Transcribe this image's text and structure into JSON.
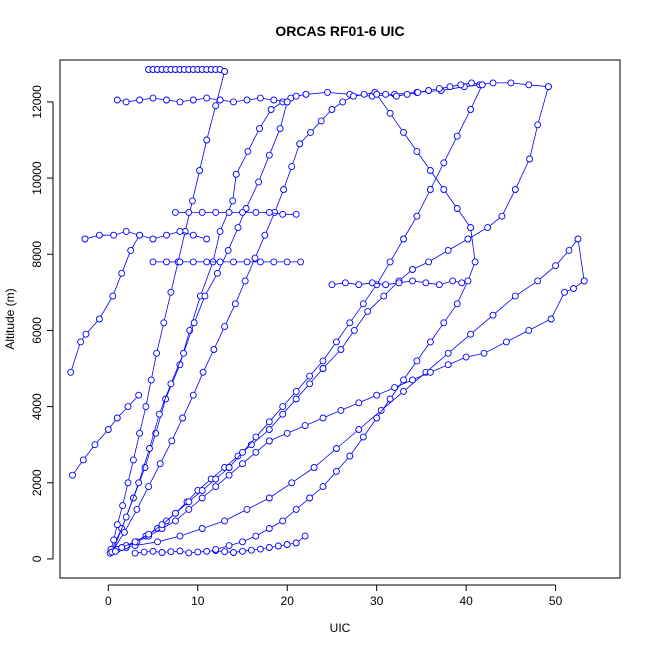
{
  "chart_data": {
    "type": "scatter",
    "title": "ORCAS RF01-6 UIC",
    "xlabel": "UIC",
    "ylabel": "Altitude (m)",
    "xlim": [
      -5.4,
      57.2
    ],
    "ylim": [
      -500,
      13100
    ],
    "xticks": [
      0,
      10,
      20,
      30,
      40,
      50
    ],
    "yticks": [
      0,
      2000,
      4000,
      6000,
      8000,
      10000,
      12000
    ],
    "grid": false,
    "legend": "none",
    "markers": "open-circle",
    "connected": true,
    "color": "#0000ff",
    "series": [
      {
        "x": [
          0.2,
          1.5,
          2.8,
          4.1,
          5.3,
          6.4,
          8.0,
          9.1,
          10.3,
          11.7,
          12.5,
          13.9,
          14.3
        ],
        "y": [
          150,
          800,
          1600,
          2400,
          3300,
          4200,
          5100,
          6000,
          6900,
          7800,
          8600,
          9400,
          10100
        ]
      },
      {
        "x": [
          14.3,
          15.6,
          16.9,
          18.2,
          19.5,
          20.4,
          21.0,
          22.1
        ],
        "y": [
          10100,
          10700,
          11300,
          11800,
          12000,
          12100,
          12150,
          12200
        ]
      },
      {
        "x": [
          22.1,
          24.5,
          27.0,
          29.5,
          32.0,
          34.5,
          37.2,
          39.8,
          41.5,
          43.0,
          45.0,
          47.0,
          49.2
        ],
        "y": [
          12200,
          12250,
          12200,
          12150,
          12200,
          12250,
          12300,
          12400,
          12450,
          12500,
          12500,
          12450,
          12400
        ]
      },
      {
        "x": [
          49.2,
          48.0,
          47.1,
          45.5,
          44.0,
          42.4,
          40.2,
          38.0,
          35.8,
          34.0,
          32.5,
          30.8,
          29.0,
          27.5,
          26.0,
          24.0
        ],
        "y": [
          12400,
          11400,
          10500,
          9700,
          9000,
          8700,
          8400,
          8100,
          7800,
          7600,
          7300,
          6900,
          6500,
          6000,
          5500,
          5000
        ]
      },
      {
        "x": [
          24.0,
          22.5,
          21.0,
          19.5,
          18.0,
          16.0,
          14.5,
          13.0,
          11.5,
          10.0,
          8.8,
          7.5,
          6.5,
          5.5,
          4.2,
          3.0,
          2.0,
          1.0,
          0.5
        ],
        "y": [
          5000,
          4600,
          4200,
          3800,
          3400,
          3000,
          2700,
          2400,
          2100,
          1800,
          1500,
          1200,
          1000,
          800,
          600,
          450,
          300,
          250,
          200
        ]
      },
      {
        "x": [
          0.5,
          2.0,
          3.4,
          4.6,
          5.7,
          7.0,
          8.4,
          9.6,
          10.8,
          12.2,
          13.4,
          14.5,
          15.4,
          16.8,
          18.0,
          19.2,
          20.0
        ],
        "y": [
          200,
          1100,
          2000,
          2900,
          3800,
          4600,
          5400,
          6200,
          6900,
          7500,
          8100,
          8700,
          9200,
          9900,
          10600,
          11300,
          12000
        ]
      },
      {
        "x": [
          20.0,
          18.5,
          17.0,
          15.5,
          14.0,
          12.5,
          11.0,
          9.5,
          8.0,
          6.5,
          5.0,
          3.5,
          2.0,
          1.0
        ],
        "y": [
          12000,
          12050,
          12100,
          12050,
          12000,
          12050,
          12100,
          12050,
          12000,
          12050,
          12100,
          12050,
          12000,
          12050
        ]
      },
      {
        "x": [
          4.5,
          5.0,
          5.5,
          6.0,
          6.5,
          7.0,
          7.5,
          8.0,
          8.5,
          9.0,
          9.5,
          10.0,
          10.5,
          11.0,
          11.5,
          12.0,
          12.5,
          13.0
        ],
        "y": [
          12850,
          12850,
          12850,
          12850,
          12850,
          12850,
          12850,
          12850,
          12850,
          12850,
          12850,
          12850,
          12850,
          12850,
          12850,
          12850,
          12850,
          12800
        ]
      },
      {
        "x": [
          13.0,
          12.0,
          11.0,
          10.2,
          9.4,
          8.6,
          7.8,
          7.0,
          6.2,
          5.4,
          4.8,
          4.2,
          3.5,
          2.8,
          2.2,
          1.6,
          1.0,
          0.6,
          0.3
        ],
        "y": [
          12800,
          11900,
          11000,
          10200,
          9400,
          8600,
          7800,
          7000,
          6200,
          5400,
          4700,
          4000,
          3300,
          2600,
          2000,
          1400,
          900,
          500,
          250
        ]
      },
      {
        "x": [
          0.3,
          3.0,
          5.5,
          8.0,
          10.5,
          13.0,
          15.5,
          18.0,
          20.5,
          23.0,
          25.5,
          28.0,
          30.5,
          33.0,
          35.5,
          38.0,
          40.5,
          43.0,
          45.5,
          48.0,
          50.0,
          51.5,
          52.5,
          53.2
        ],
        "y": [
          250,
          350,
          450,
          600,
          800,
          1000,
          1300,
          1600,
          2000,
          2400,
          2900,
          3400,
          3900,
          4400,
          4900,
          5400,
          5900,
          6400,
          6900,
          7300,
          7700,
          8100,
          8400,
          7300
        ]
      },
      {
        "x": [
          53.2,
          52.0,
          51.0,
          49.5,
          47.0,
          44.5,
          42.0,
          40.0,
          38.0,
          36.0,
          34.0,
          32.0,
          30.0,
          28.0,
          26.0,
          24.0,
          22.0,
          20.0,
          18.0
        ],
        "y": [
          7300,
          7100,
          7000,
          6300,
          6000,
          5700,
          5400,
          5300,
          5100,
          4900,
          4700,
          4500,
          4300,
          4100,
          3900,
          3700,
          3500,
          3300,
          3100
        ]
      },
      {
        "x": [
          18.0,
          16.5,
          15.0,
          13.5,
          12.0,
          10.5,
          9.0,
          7.5,
          6.0,
          4.5,
          3.2,
          2.0,
          1.0,
          0.4
        ],
        "y": [
          3100,
          2800,
          2500,
          2200,
          1900,
          1600,
          1300,
          1000,
          800,
          600,
          450,
          350,
          250,
          180
        ]
      },
      {
        "x": [
          0.4,
          1.8,
          3.2,
          4.5,
          5.8,
          7.1,
          8.3,
          9.5,
          10.6,
          11.8,
          13.0,
          14.2,
          15.3,
          16.4,
          17.5,
          18.6,
          19.6,
          20.5,
          21.4
        ],
        "y": [
          180,
          700,
          1300,
          1900,
          2500,
          3100,
          3700,
          4300,
          4900,
          5500,
          6100,
          6700,
          7300,
          7900,
          8500,
          9100,
          9700,
          10300,
          10900
        ]
      },
      {
        "x": [
          21.4,
          22.6,
          23.8,
          25.0,
          26.2,
          27.4,
          28.6,
          29.8,
          31.0,
          32.2,
          33.4,
          34.6,
          35.8,
          37.0,
          38.2,
          39.4,
          40.6,
          41.8
        ],
        "y": [
          10900,
          11200,
          11500,
          11800,
          12000,
          12150,
          12200,
          12250,
          12200,
          12150,
          12200,
          12250,
          12300,
          12350,
          12400,
          12450,
          12500,
          12450
        ]
      },
      {
        "x": [
          41.8,
          40.5,
          39.0,
          37.5,
          36.0,
          34.5,
          33.0,
          31.5,
          30.0,
          28.5,
          27.0,
          25.5,
          24.0,
          22.5,
          21.0,
          19.5,
          18.0,
          16.5,
          15.0,
          13.5
        ],
        "y": [
          12450,
          11800,
          11100,
          10400,
          9700,
          9000,
          8400,
          7800,
          7200,
          6700,
          6200,
          5700,
          5200,
          4800,
          4400,
          4000,
          3600,
          3200,
          2800,
          2400
        ]
      },
      {
        "x": [
          13.5,
          12.0,
          10.5,
          9.0,
          7.5,
          6.0,
          4.5,
          3.0,
          1.5,
          0.8
        ],
        "y": [
          2400,
          2100,
          1800,
          1500,
          1200,
          900,
          650,
          450,
          300,
          200
        ]
      },
      {
        "x": [
          -4.2,
          -3.1,
          -2.5,
          -1.0,
          0.5,
          1.5,
          2.5,
          3.5
        ],
        "y": [
          4900,
          5700,
          5900,
          6300,
          6900,
          7500,
          8100,
          8500
        ]
      },
      {
        "x": [
          -4.0,
          -2.8,
          -1.5,
          0.0,
          1.0,
          2.2,
          3.4
        ],
        "y": [
          2200,
          2600,
          3000,
          3400,
          3700,
          4000,
          4300
        ]
      },
      {
        "x": [
          -2.6,
          -1.0,
          0.6,
          2.0,
          3.5,
          5.0,
          6.5,
          8.0,
          9.5,
          11.0
        ],
        "y": [
          8400,
          8500,
          8500,
          8600,
          8500,
          8400,
          8500,
          8600,
          8500,
          8400
        ]
      },
      {
        "x": [
          5.0,
          6.5,
          8.0,
          9.5,
          11.0,
          12.5,
          14.0,
          15.5,
          17.0,
          18.5,
          20.0,
          21.5
        ],
        "y": [
          7800,
          7800,
          7800,
          7800,
          7800,
          7800,
          7800,
          7800,
          7800,
          7800,
          7800,
          7800
        ]
      },
      {
        "x": [
          7.5,
          9.0,
          10.5,
          12.0,
          13.5,
          15.0,
          16.5,
          18.0,
          19.5,
          21.0
        ],
        "y": [
          9100,
          9100,
          9100,
          9100,
          9100,
          9100,
          9100,
          9100,
          9050,
          9050
        ]
      },
      {
        "x": [
          25.0,
          26.5,
          28.0,
          29.5,
          31.0,
          32.5,
          34.0,
          35.5,
          37.0,
          38.5,
          39.5
        ],
        "y": [
          7200,
          7250,
          7200,
          7250,
          7200,
          7250,
          7300,
          7250,
          7200,
          7300,
          7250
        ]
      },
      {
        "x": [
          3.0,
          4.0,
          5.0,
          6.0,
          7.0,
          8.0,
          9.0,
          10.0,
          11.0,
          12.0,
          13.0,
          14.0,
          15.0,
          16.0,
          17.0,
          18.0,
          19.0,
          20.0,
          21.0,
          22.0
        ],
        "y": [
          150,
          180,
          200,
          170,
          190,
          210,
          160,
          180,
          200,
          220,
          190,
          170,
          200,
          230,
          260,
          300,
          340,
          380,
          420,
          600
        ]
      },
      {
        "x": [
          30.0,
          31.5,
          33.0,
          34.5,
          36.0,
          37.5,
          39.0,
          40.5
        ],
        "y": [
          12200,
          11700,
          11200,
          10700,
          10200,
          9700,
          9200,
          8700
        ]
      },
      {
        "x": [
          40.5,
          41.0,
          40.2,
          39.0,
          37.5,
          36.0,
          34.5,
          33.0,
          31.5,
          30.0,
          28.5,
          27.0
        ],
        "y": [
          8700,
          7800,
          7300,
          6700,
          6200,
          5700,
          5200,
          4700,
          4200,
          3700,
          3200,
          2700
        ]
      },
      {
        "x": [
          27.0,
          25.5,
          24.0,
          22.5,
          21.0,
          19.5,
          18.0,
          16.5,
          15.0,
          13.5,
          12.0
        ],
        "y": [
          2700,
          2300,
          1900,
          1600,
          1300,
          1000,
          800,
          600,
          450,
          350,
          250
        ]
      }
    ]
  }
}
